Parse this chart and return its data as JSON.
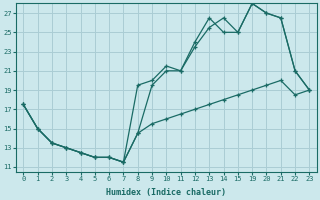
{
  "xlabel": "Humidex (Indice chaleur)",
  "bg_color": "#cce8ec",
  "grid_color": "#aacdd4",
  "line_color": "#1a6b65",
  "xlim": [
    -0.5,
    23.5
  ],
  "ylim": [
    10.5,
    28.0
  ],
  "yticks": [
    11,
    13,
    15,
    17,
    19,
    21,
    23,
    25,
    27
  ],
  "xticks": [
    0,
    1,
    2,
    3,
    4,
    5,
    6,
    7,
    8,
    9,
    10,
    11,
    12,
    13,
    14,
    15,
    19,
    20,
    21,
    22,
    23
  ],
  "line1_x": [
    0,
    1,
    2,
    3,
    4,
    5,
    6,
    7,
    8,
    9,
    10,
    11,
    12,
    13,
    14,
    15,
    19,
    20,
    21,
    22,
    23
  ],
  "line1_y": [
    17.5,
    15.0,
    13.5,
    13.0,
    12.5,
    12.0,
    12.0,
    11.5,
    14.5,
    19.5,
    21.0,
    21.0,
    23.5,
    25.5,
    26.5,
    25.0,
    28.0,
    27.0,
    26.5,
    21.0,
    19.0
  ],
  "line2_x": [
    0,
    1,
    2,
    3,
    4,
    5,
    6,
    7,
    8,
    9,
    10,
    11,
    12,
    13,
    14,
    15,
    19,
    20,
    21,
    22,
    23
  ],
  "line2_y": [
    17.5,
    15.0,
    13.5,
    13.0,
    12.5,
    12.0,
    12.0,
    11.5,
    19.5,
    20.0,
    21.5,
    21.0,
    24.0,
    26.5,
    25.0,
    25.0,
    28.0,
    27.0,
    26.5,
    21.0,
    19.0
  ],
  "line3_x": [
    0,
    1,
    2,
    3,
    4,
    5,
    6,
    7,
    8,
    9,
    10,
    11,
    12,
    13,
    14,
    15,
    19,
    20,
    21,
    22,
    23
  ],
  "line3_y": [
    17.5,
    15.0,
    13.5,
    13.0,
    12.5,
    12.0,
    12.0,
    11.5,
    14.5,
    15.5,
    16.0,
    16.5,
    17.0,
    17.5,
    18.0,
    18.5,
    19.0,
    19.5,
    20.0,
    18.5,
    19.0
  ]
}
